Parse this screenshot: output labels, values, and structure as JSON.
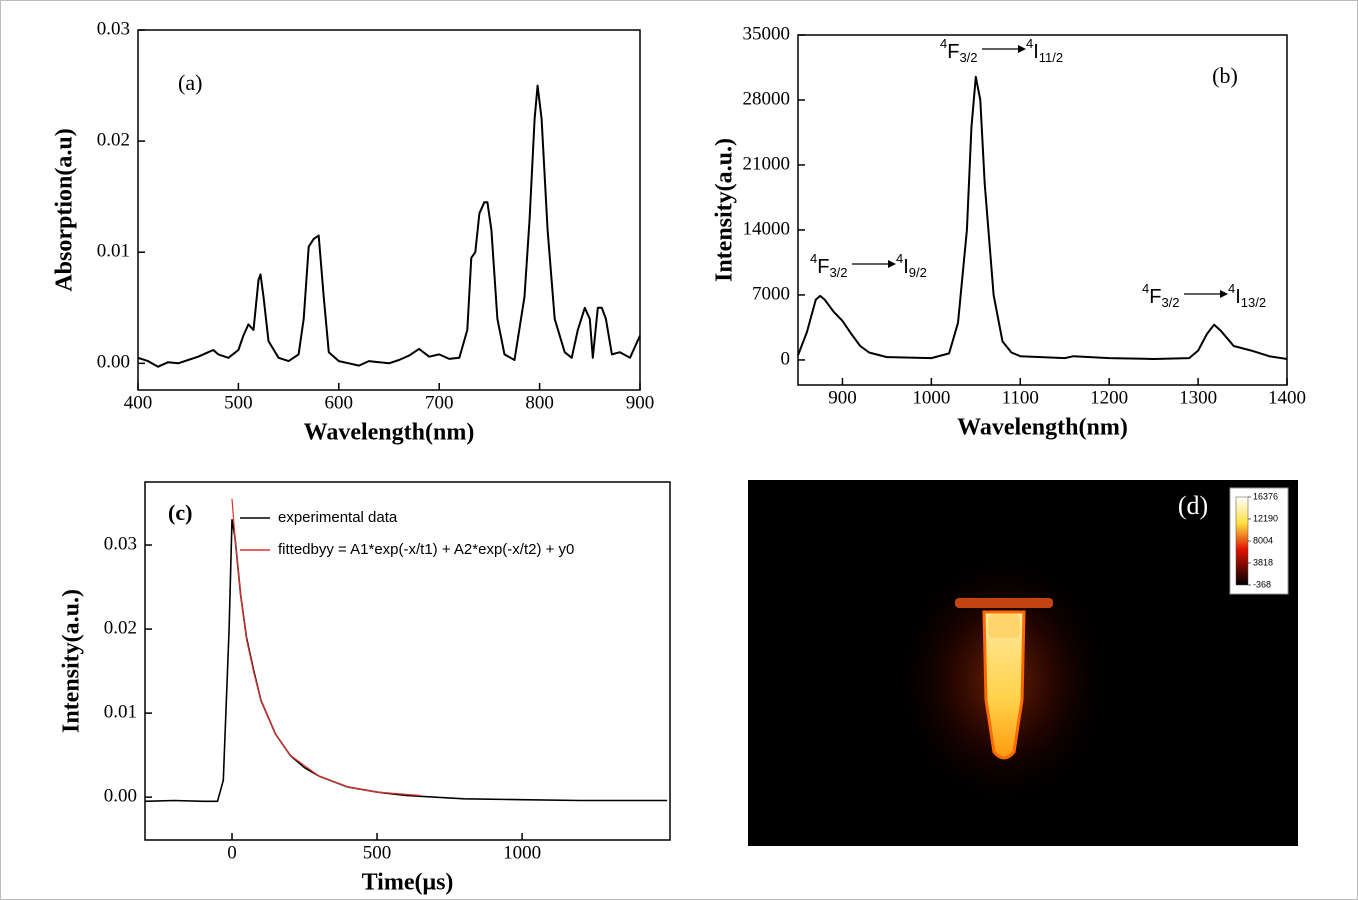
{
  "chart_data": [
    {
      "type": "line",
      "label": "(a)",
      "xlabel": "Wavelength(nm)",
      "ylabel": "Absorption(a.u)",
      "color": "#000000",
      "xlim": [
        400,
        900
      ],
      "xticks": [
        400,
        500,
        600,
        700,
        800,
        900
      ],
      "ylim": [
        -0.0024,
        0.03
      ],
      "yticks": [
        {
          "value": 0,
          "label": "0.00"
        },
        0.01,
        0.02,
        0.03
      ],
      "x": [
        400,
        410,
        420,
        430,
        440,
        450,
        460,
        470,
        475,
        480,
        490,
        500,
        505,
        510,
        515,
        520,
        522,
        525,
        530,
        540,
        550,
        560,
        565,
        570,
        575,
        580,
        585,
        590,
        600,
        610,
        620,
        630,
        640,
        650,
        660,
        670,
        680,
        690,
        700,
        710,
        720,
        728,
        732,
        736,
        740,
        745,
        748,
        752,
        758,
        765,
        775,
        785,
        790,
        795,
        798,
        802,
        808,
        815,
        825,
        832,
        838,
        845,
        850,
        853,
        858,
        862,
        866,
        872,
        880,
        890,
        900
      ],
      "values": [
        0.0005,
        0.0002,
        -0.0003,
        0.0001,
        0.0,
        0.0003,
        0.0006,
        0.001,
        0.0012,
        0.0008,
        0.0005,
        0.0012,
        0.0025,
        0.0035,
        0.003,
        0.0075,
        0.008,
        0.006,
        0.002,
        0.0005,
        0.0002,
        0.0008,
        0.004,
        0.0105,
        0.0112,
        0.0115,
        0.006,
        0.001,
        0.0002,
        0.0,
        -0.0002,
        0.0002,
        0.0001,
        0.0,
        0.0003,
        0.0007,
        0.0013,
        0.0006,
        0.0008,
        0.0004,
        0.0005,
        0.003,
        0.0095,
        0.01,
        0.0135,
        0.0145,
        0.0145,
        0.012,
        0.004,
        0.0008,
        0.0003,
        0.006,
        0.013,
        0.022,
        0.025,
        0.022,
        0.012,
        0.004,
        0.001,
        0.0005,
        0.003,
        0.005,
        0.004,
        0.0005,
        0.005,
        0.005,
        0.004,
        0.0008,
        0.001,
        0.0005,
        0.0025
      ]
    },
    {
      "type": "line",
      "label": "(b)",
      "xlabel": "Wavelength(nm)",
      "ylabel": "Intensity(a.u.)",
      "color": "#000000",
      "xlim": [
        850,
        1400
      ],
      "xticks": [
        900,
        1000,
        1100,
        1200,
        1300,
        1400
      ],
      "ylim": [
        -2700,
        35000
      ],
      "yticks": [
        0,
        7000,
        14000,
        21000,
        28000,
        35000
      ],
      "x": [
        850,
        860,
        870,
        875,
        880,
        890,
        900,
        910,
        920,
        930,
        950,
        1000,
        1020,
        1030,
        1040,
        1045,
        1050,
        1055,
        1060,
        1070,
        1080,
        1090,
        1100,
        1150,
        1160,
        1200,
        1250,
        1290,
        1300,
        1310,
        1318,
        1325,
        1340,
        1360,
        1380,
        1400
      ],
      "values": [
        500,
        3000,
        6500,
        6900,
        6500,
        5200,
        4200,
        2800,
        1500,
        800,
        300,
        200,
        700,
        4000,
        14000,
        25000,
        30500,
        28000,
        19000,
        7000,
        2000,
        800,
        400,
        200,
        400,
        200,
        100,
        200,
        1000,
        2800,
        3800,
        3200,
        1500,
        1000,
        400,
        100
      ],
      "annotations": [
        {
          "from": {
            "sup": "4",
            "base": "F",
            "sub": "3/2"
          },
          "to": {
            "sup": "4",
            "base": "I",
            "sub": "9/2"
          }
        },
        {
          "from": {
            "sup": "4",
            "base": "F",
            "sub": "3/2"
          },
          "to": {
            "sup": "4",
            "base": "I",
            "sub": "11/2"
          }
        },
        {
          "from": {
            "sup": "4",
            "base": "F",
            "sub": "3/2"
          },
          "to": {
            "sup": "4",
            "base": "I",
            "sub": "13/2"
          }
        }
      ]
    },
    {
      "type": "line",
      "label": "(c)",
      "xlabel": "Time(μs)",
      "ylabel": "Intensity(a.u.)",
      "xlim": [
        -300,
        1510
      ],
      "xticks": [
        0,
        500,
        1000
      ],
      "ylim": [
        -0.0051,
        0.0375
      ],
      "yticks": [
        {
          "value": 0,
          "label": "0.00"
        },
        0.01,
        0.02,
        0.03
      ],
      "series": [
        {
          "name": "experimental data",
          "color": "#000000",
          "x": [
            -300,
            -200,
            -100,
            -50,
            -30,
            -10,
            0,
            10,
            30,
            50,
            75,
            100,
            150,
            200,
            250,
            300,
            400,
            500,
            600,
            800,
            1000,
            1200,
            1500
          ],
          "values": [
            -0.0005,
            -0.0004,
            -0.0005,
            -0.0005,
            0.002,
            0.02,
            0.033,
            0.031,
            0.024,
            0.019,
            0.015,
            0.0115,
            0.0075,
            0.005,
            0.0035,
            0.0025,
            0.0012,
            0.0006,
            0.0002,
            -0.0002,
            -0.0003,
            -0.0004,
            -0.0004
          ]
        },
        {
          "name": "fittedbyy = A1*exp(-x/t1) + A2*exp(-x/t2) + y0",
          "color": "#e03030",
          "x": [
            0,
            10,
            30,
            50,
            75,
            100,
            150,
            200,
            300,
            400,
            500,
            650
          ],
          "values": [
            0.0355,
            0.031,
            0.024,
            0.0188,
            0.0148,
            0.0115,
            0.0075,
            0.005,
            0.0025,
            0.0012,
            0.0006,
            0.0002
          ]
        }
      ]
    },
    {
      "type": "image",
      "label": "(d)",
      "clim": [
        -368,
        16376
      ],
      "cticks": [
        16376,
        12190,
        8004,
        3818,
        -368
      ]
    }
  ]
}
